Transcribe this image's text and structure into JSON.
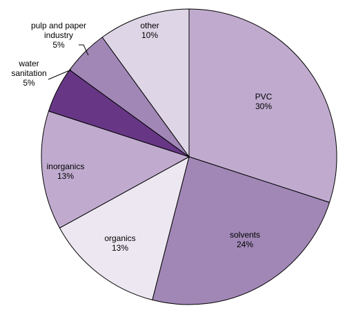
{
  "chart_data": {
    "type": "pie",
    "title": "",
    "slices": [
      {
        "label_lines": [
          "PVC"
        ],
        "value": 30,
        "value_label": "30%",
        "color": "#c0abcf"
      },
      {
        "label_lines": [
          "solvents"
        ],
        "value": 24,
        "value_label": "24%",
        "color": "#a187b6"
      },
      {
        "label_lines": [
          "organics"
        ],
        "value": 13,
        "value_label": "13%",
        "color": "#ede7f1"
      },
      {
        "label_lines": [
          "inorganics"
        ],
        "value": 13,
        "value_label": "13%",
        "color": "#c0abcf"
      },
      {
        "label_lines": [
          "water",
          "sanitation"
        ],
        "value": 5,
        "value_label": "5%",
        "color": "#673785"
      },
      {
        "label_lines": [
          "pulp and paper",
          "industry"
        ],
        "value": 5,
        "value_label": "5%",
        "color": "#a187b6"
      },
      {
        "label_lines": [
          "other"
        ],
        "value": 10,
        "value_label": "10%",
        "color": "#ded5e6"
      }
    ],
    "legend": "none",
    "start": "12 o'clock",
    "direction": "clockwise"
  }
}
